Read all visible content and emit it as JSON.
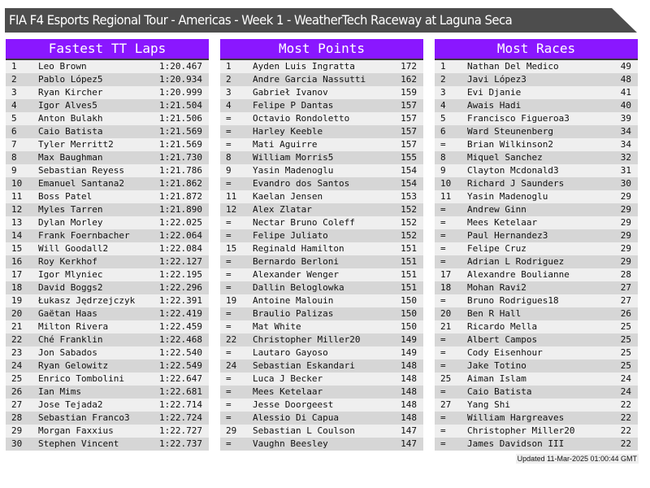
{
  "title": "FIA F4 Esports Regional Tour - Americas - Week 1 - WeatherTech Raceway at Laguna Seca",
  "footer": "Updated 11-Mar-2025 01:00:44 GMT",
  "colors": {
    "header": "#8a17ff",
    "banner": "#4d4d4d",
    "row_light": "#efefef",
    "row_dark": "#d6d6d6"
  },
  "panels": [
    {
      "title": "Fastest TT Laps",
      "rows": [
        [
          "1",
          "Leo Brown",
          "1:20.467"
        ],
        [
          "2",
          "Pablo López5",
          "1:20.934"
        ],
        [
          "3",
          "Ryan Kircher",
          "1:20.999"
        ],
        [
          "4",
          "Igor Alves5",
          "1:21.504"
        ],
        [
          "5",
          "Anton Bulakh",
          "1:21.506"
        ],
        [
          "6",
          "Caio Batista",
          "1:21.569"
        ],
        [
          "7",
          "Tyler Merritt2",
          "1:21.569"
        ],
        [
          "8",
          "Max Baughman",
          "1:21.730"
        ],
        [
          "9",
          "Sebastian Reyess",
          "1:21.786"
        ],
        [
          "10",
          "Emanuel Santana2",
          "1:21.862"
        ],
        [
          "11",
          "Boss Patel",
          "1:21.872"
        ],
        [
          "12",
          "Myles Tarren",
          "1:21.890"
        ],
        [
          "13",
          "Dylan Morley",
          "1:22.025"
        ],
        [
          "14",
          "Frank Foernbacher",
          "1:22.064"
        ],
        [
          "15",
          "Will Goodall2",
          "1:22.084"
        ],
        [
          "16",
          "Roy Kerkhof",
          "1:22.127"
        ],
        [
          "17",
          "Igor Mlyniec",
          "1:22.195"
        ],
        [
          "18",
          "David Boggs2",
          "1:22.296"
        ],
        [
          "19",
          "Łukasz Jędrzejczyk",
          "1:22.391"
        ],
        [
          "20",
          "Gaëtan Haas",
          "1:22.419"
        ],
        [
          "21",
          "Milton Rivera",
          "1:22.459"
        ],
        [
          "22",
          "Ché Franklin",
          "1:22.468"
        ],
        [
          "23",
          "Jon Sabados",
          "1:22.540"
        ],
        [
          "24",
          "Ryan Gelowitz",
          "1:22.549"
        ],
        [
          "25",
          "Enrico Tombolini",
          "1:22.647"
        ],
        [
          "26",
          "Ian Mims",
          "1:22.681"
        ],
        [
          "27",
          "Jose Tejada2",
          "1:22.714"
        ],
        [
          "28",
          "Sebastian Franco3",
          "1:22.724"
        ],
        [
          "29",
          "Morgan Faxxius",
          "1:22.727"
        ],
        [
          "30",
          "Stephen Vincent",
          "1:22.737"
        ]
      ]
    },
    {
      "title": "Most Points",
      "rows": [
        [
          "1",
          "Ayden Luis Ingratta",
          "172"
        ],
        [
          "2",
          "Andre Garcia Nassutti",
          "162"
        ],
        [
          "3",
          "Gabrieł Ivanov",
          "159"
        ],
        [
          "4",
          "Felipe P Dantas",
          "157"
        ],
        [
          "=",
          "Octavio Rondoletto",
          "157"
        ],
        [
          "=",
          "Harley Keeble",
          "157"
        ],
        [
          "=",
          "Mati Aguirre",
          "157"
        ],
        [
          "8",
          "William Morris5",
          "155"
        ],
        [
          "9",
          "Yasin Madenoglu",
          "154"
        ],
        [
          "=",
          "Evandro dos Santos",
          "154"
        ],
        [
          "11",
          "Kaelan Jensen",
          "153"
        ],
        [
          "12",
          "Alex Zlatar",
          "152"
        ],
        [
          "=",
          "Nectar Bruno Coleff",
          "152"
        ],
        [
          "=",
          "Felipe Juliato",
          "152"
        ],
        [
          "15",
          "Reginald Hamilton",
          "151"
        ],
        [
          "=",
          "Bernardo Berloni",
          "151"
        ],
        [
          "=",
          "Alexander Wenger",
          "151"
        ],
        [
          "=",
          "Dallin Beloglowka",
          "151"
        ],
        [
          "19",
          "Antoine Malouin",
          "150"
        ],
        [
          "=",
          "Braulio Palizas",
          "150"
        ],
        [
          "=",
          "Mat White",
          "150"
        ],
        [
          "22",
          "Christopher Miller20",
          "149"
        ],
        [
          "=",
          "Lautaro Gayoso",
          "149"
        ],
        [
          "24",
          "Sebastian Eskandari",
          "148"
        ],
        [
          "=",
          "Luca J Becker",
          "148"
        ],
        [
          "=",
          "Mees Ketelaar",
          "148"
        ],
        [
          "=",
          "Jesse Doorgeest",
          "148"
        ],
        [
          "=",
          "Alessio Di Capua",
          "148"
        ],
        [
          "29",
          "Sebastian L Coulson",
          "147"
        ],
        [
          "=",
          "Vaughn Beesley",
          "147"
        ]
      ]
    },
    {
      "title": "Most Races",
      "rows": [
        [
          "1",
          "Nathan Del Medico",
          "49"
        ],
        [
          "2",
          "Javi López3",
          "48"
        ],
        [
          "3",
          "Evi Djanie",
          "41"
        ],
        [
          "4",
          "Awais Hadi",
          "40"
        ],
        [
          "5",
          "Francisco Figueroa3",
          "39"
        ],
        [
          "6",
          "Ward Steunenberg",
          "34"
        ],
        [
          "=",
          "Brian Wilkinson2",
          "34"
        ],
        [
          "8",
          "Miquel Sanchez",
          "32"
        ],
        [
          "9",
          "Clayton Mcdonald3",
          "31"
        ],
        [
          "10",
          "Richard J Saunders",
          "30"
        ],
        [
          "11",
          "Yasin Madenoglu",
          "29"
        ],
        [
          "=",
          "Andrew Ginn",
          "29"
        ],
        [
          "=",
          "Mees Ketelaar",
          "29"
        ],
        [
          "=",
          "Paul Hernandez3",
          "29"
        ],
        [
          "=",
          "Felipe Cruz",
          "29"
        ],
        [
          "=",
          "Adrian L Rodriguez",
          "29"
        ],
        [
          "17",
          "Alexandre Boulianne",
          "28"
        ],
        [
          "18",
          "Mohan Ravi2",
          "27"
        ],
        [
          "=",
          "Bruno Rodrigues18",
          "27"
        ],
        [
          "20",
          "Ben R Hall",
          "26"
        ],
        [
          "21",
          "Ricardo Mella",
          "25"
        ],
        [
          "=",
          "Albert Campos",
          "25"
        ],
        [
          "=",
          "Cody Eisenhour",
          "25"
        ],
        [
          "=",
          "Jake Totino",
          "25"
        ],
        [
          "25",
          "Aiman Islam",
          "24"
        ],
        [
          "=",
          "Caio Batista",
          "24"
        ],
        [
          "27",
          "Yang Shi",
          "22"
        ],
        [
          "=",
          "William Hargreaves",
          "22"
        ],
        [
          "=",
          "Christopher Miller20",
          "22"
        ],
        [
          "=",
          "James Davidson III",
          "22"
        ]
      ]
    }
  ]
}
